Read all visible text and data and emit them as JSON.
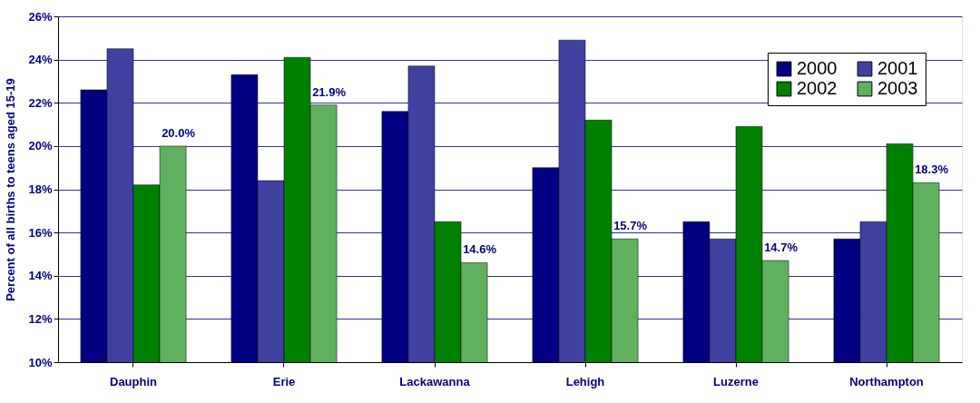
{
  "chart_data": {
    "type": "bar",
    "ylabel": "Percent of all births to teens aged 15-19",
    "categories": [
      "Dauphin",
      "Erie",
      "Lackawanna",
      "Lehigh",
      "Luzerne",
      "Northampton"
    ],
    "series": [
      {
        "name": "2000",
        "color": "#000080",
        "values": [
          22.6,
          23.3,
          21.6,
          19.0,
          16.5,
          15.7
        ]
      },
      {
        "name": "2001",
        "color": "#4040a0",
        "values": [
          24.5,
          18.4,
          23.7,
          24.9,
          15.7,
          16.5
        ]
      },
      {
        "name": "2002",
        "color": "#008000",
        "values": [
          18.2,
          24.1,
          16.5,
          21.2,
          20.9,
          20.1
        ]
      },
      {
        "name": "2003",
        "color": "#60b060",
        "values": [
          20.0,
          21.9,
          14.6,
          15.7,
          14.7,
          18.3
        ],
        "value_labels": [
          "20.0%",
          "21.9%",
          "14.6%",
          "15.7%",
          "14.7%",
          "18.3%"
        ]
      }
    ],
    "ylim": [
      10,
      26
    ],
    "yticks": [
      {
        "value": 10,
        "label": "10%"
      },
      {
        "value": 12,
        "label": "12%"
      },
      {
        "value": 14,
        "label": "14%"
      },
      {
        "value": 16,
        "label": "16%"
      },
      {
        "value": 18,
        "label": "18%"
      },
      {
        "value": 20,
        "label": "20%"
      },
      {
        "value": 22,
        "label": "22%"
      },
      {
        "value": 24,
        "label": "24%"
      },
      {
        "value": 26,
        "label": "26%"
      }
    ],
    "grid": "y",
    "legend": "top right"
  }
}
